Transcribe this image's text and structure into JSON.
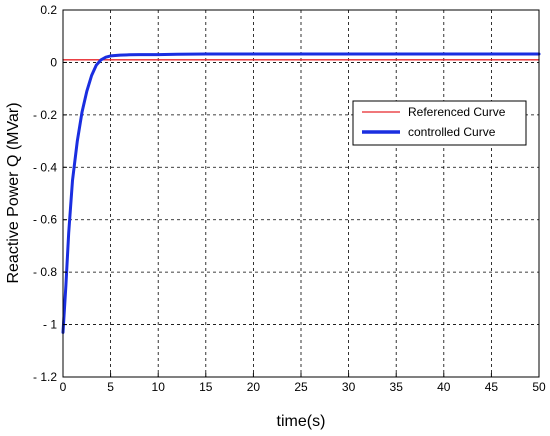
{
  "chart_data": {
    "type": "line",
    "title": "",
    "xlabel": "time(s)",
    "ylabel": "Reactive Power Q (MVar)",
    "xlim": [
      0,
      50
    ],
    "ylim": [
      -1.2,
      0.2
    ],
    "x_ticks": [
      0,
      5,
      10,
      15,
      20,
      25,
      30,
      35,
      40,
      45,
      50
    ],
    "x_tick_labels": [
      "0",
      "5",
      "10",
      "15",
      "20",
      "25",
      "30",
      "35",
      "40",
      "45",
      "50"
    ],
    "y_ticks": [
      0.2,
      0,
      -0.2,
      -0.4,
      -0.6,
      -0.8,
      -1,
      -1.2
    ],
    "y_tick_labels": [
      "0.2",
      "0",
      "- 0.2",
      "- 0.4",
      "- 0.6",
      "- 0.8",
      "- 1",
      "- 1.2"
    ],
    "grid": true,
    "legend_position": "right",
    "series": [
      {
        "name": "Referenced Curve",
        "color": "#e8262a",
        "style": "thin",
        "x": [
          0,
          50
        ],
        "y": [
          0.01,
          0.01
        ]
      },
      {
        "name": "controlled Curve",
        "color": "#1a2ee0",
        "style": "thick",
        "x": [
          0,
          0.3,
          0.6,
          1,
          1.5,
          2,
          2.5,
          3,
          3.5,
          4,
          4.5,
          5,
          6,
          7,
          8,
          10,
          12,
          15,
          20,
          30,
          40,
          50
        ],
        "y": [
          -1.03,
          -0.85,
          -0.65,
          -0.45,
          -0.3,
          -0.19,
          -0.11,
          -0.05,
          -0.01,
          0.01,
          0.02,
          0.025,
          0.028,
          0.029,
          0.03,
          0.03,
          0.031,
          0.032,
          0.032,
          0.032,
          0.032,
          0.032
        ]
      }
    ]
  }
}
